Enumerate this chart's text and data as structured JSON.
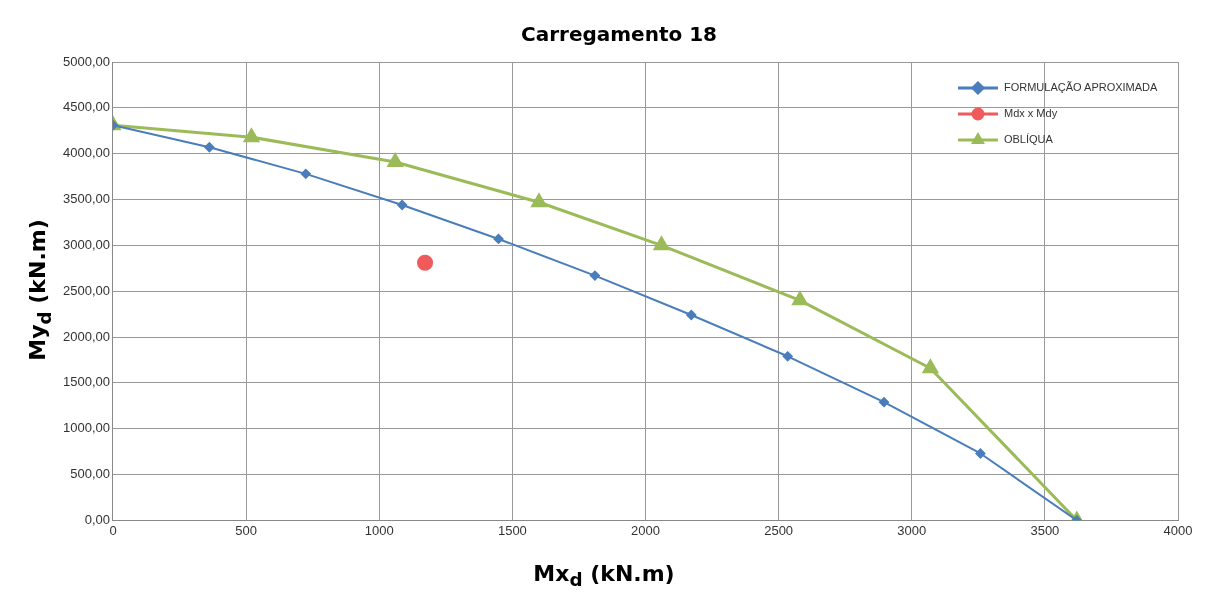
{
  "chart_data": {
    "type": "line",
    "title": "Carregamento 18",
    "xlabel": "Mx$_{d}$ (kN.m)",
    "ylabel": "My$_{d}$ (kN.m)",
    "xlim": [
      0,
      4000
    ],
    "xticks": [
      0,
      500,
      1000,
      1500,
      2000,
      2500,
      3000,
      3500,
      4000
    ],
    "ylim": [
      0,
      5000
    ],
    "yticks": [
      {
        "value": 0,
        "label": "0,00"
      },
      {
        "value": 500,
        "label": "500,00"
      },
      {
        "value": 1000,
        "label": "1000,00"
      },
      {
        "value": 1500,
        "label": "1500,00"
      },
      {
        "value": 2000,
        "label": "2000,00"
      },
      {
        "value": 2500,
        "label": "2500,00"
      },
      {
        "value": 3000,
        "label": "3000,00"
      },
      {
        "value": 3500,
        "label": "3500,00"
      },
      {
        "value": 4000,
        "label": "4000,00"
      },
      {
        "value": 4500,
        "label": "4500,00"
      },
      {
        "value": 5000,
        "label": "5000,00"
      }
    ],
    "grid": true,
    "legend": "top right",
    "series": [
      {
        "name": "FORMULAÇÃO APROXIMADA",
        "type": "line",
        "marker": "diamond",
        "color": "#4a7ebb",
        "x": [
          0,
          362,
          724,
          1086,
          1448,
          1810,
          2172,
          2534,
          2896,
          3258,
          3620
        ],
        "values": [
          4310,
          4070,
          3780,
          3440,
          3070,
          2670,
          2240,
          1790,
          1290,
          730,
          0
        ]
      },
      {
        "name": "Mdx x Mdy",
        "type": "scatter",
        "marker": "circle",
        "color": "#f05a5a",
        "x": [
          1172
        ],
        "values": [
          2810
        ]
      },
      {
        "name": "OBLÍQUA",
        "type": "line",
        "marker": "triangle",
        "color": "#9bbb59",
        "x": [
          0,
          520,
          1060,
          1600,
          2060,
          2580,
          3070,
          3620
        ],
        "values": [
          4310,
          4180,
          3910,
          3470,
          3000,
          2400,
          1660,
          0
        ]
      }
    ]
  }
}
